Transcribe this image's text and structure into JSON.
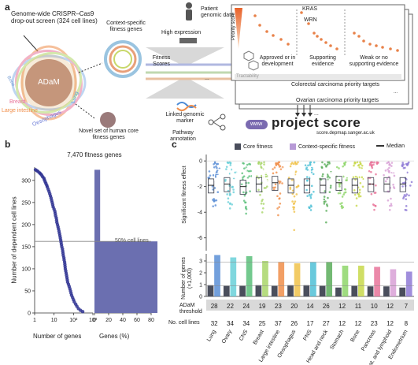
{
  "panel_a": {
    "letter": "a",
    "screen_label": "Genome-wide CRISPR–Cas9 drop-out screen (324 cell lines)",
    "center_label": "ADaM",
    "petal_labels": [
      "Bone",
      "Breast",
      "Large intestine",
      "Oesophagus",
      "Lung"
    ],
    "core_set_label": "Novel set of human core fitness genes",
    "context_label": "Context-specific fitness genes",
    "patient_label": "Patient genomic data",
    "expression_label": "High expression",
    "fitness_scores_label": "Fitness Scores",
    "marker_label": "Linked genomic marker",
    "pathway_label": "Pathway annotation",
    "priority_axis_label": "Priority score",
    "gene_labels": [
      "KRAS",
      "WRN"
    ],
    "evidence_groups": [
      "Approved or in development",
      "Supporting evidence",
      "Weak or no supporting evidence"
    ],
    "tractability_label": "Tractability",
    "target_labels": [
      "Colorectal carcinoma priority targets",
      "Ovarian carcinoma priority targets"
    ],
    "ellipsis": "...",
    "www_label": "www",
    "project_score_title": "project score",
    "project_score_url": "score.depmap.sanger.ac.uk"
  },
  "panel_b": {
    "letter": "b",
    "title": "7,470 fitness genes",
    "threshold_label": "50% cell lines"
  },
  "panel_c": {
    "letter": "c",
    "legend": [
      "Core fitness",
      "Context-specific fitness",
      "Median"
    ],
    "adam_threshold_label": "ADaM threshold",
    "cell_lines_label": "No. cell lines"
  },
  "colors": {
    "core": "#4a4e5c",
    "context": "#b79ad6",
    "orange": "#e8824a",
    "navy": "#2e3192",
    "bar_purple": "#6b6fb0"
  },
  "chart_data": [
    {
      "type": "scatter",
      "xlabel": "Number of genes",
      "ylabel": "Number of dependent cell lines",
      "x_scale": "log",
      "x_ticks": [
        "1",
        "10",
        "10²",
        "10³"
      ],
      "y_ticks": [
        0,
        50,
        100,
        150,
        200,
        250,
        300
      ],
      "ylim": [
        0,
        330
      ],
      "points": [
        [
          1.1,
          324
        ],
        [
          1.3,
          322
        ],
        [
          1.5,
          320
        ],
        [
          1.8,
          317
        ],
        [
          2,
          315
        ],
        [
          2.3,
          312
        ],
        [
          2.6,
          308
        ],
        [
          3,
          305
        ],
        [
          3.2,
          301
        ],
        [
          3.5,
          297
        ],
        [
          3.8,
          293
        ],
        [
          4.2,
          289
        ],
        [
          4.5,
          285
        ],
        [
          5,
          280
        ],
        [
          5.5,
          275
        ],
        [
          6,
          270
        ],
        [
          6.5,
          265
        ],
        [
          7,
          260
        ],
        [
          7.5,
          255
        ],
        [
          8,
          250
        ],
        [
          8.5,
          245
        ],
        [
          9,
          240
        ],
        [
          10,
          235
        ],
        [
          11,
          230
        ],
        [
          11.5,
          225
        ],
        [
          12,
          220
        ],
        [
          13,
          215
        ],
        [
          13.5,
          210
        ],
        [
          14,
          205
        ],
        [
          15,
          200
        ],
        [
          16,
          195
        ],
        [
          17,
          190
        ],
        [
          18,
          185
        ],
        [
          19,
          180
        ],
        [
          20,
          175
        ],
        [
          21,
          170
        ],
        [
          22,
          165
        ],
        [
          23,
          160
        ],
        [
          24,
          155
        ],
        [
          25,
          150
        ],
        [
          27,
          145
        ],
        [
          28,
          140
        ],
        [
          29,
          135
        ],
        [
          30,
          130
        ],
        [
          32,
          125
        ],
        [
          33,
          120
        ],
        [
          35,
          115
        ],
        [
          36,
          110
        ],
        [
          37,
          105
        ],
        [
          38,
          100
        ],
        [
          40,
          95
        ],
        [
          42,
          90
        ],
        [
          44,
          85
        ],
        [
          46,
          80
        ],
        [
          48,
          75
        ],
        [
          50,
          70
        ],
        [
          55,
          65
        ],
        [
          60,
          60
        ],
        [
          65,
          55
        ],
        [
          70,
          50
        ],
        [
          75,
          45
        ],
        [
          80,
          40
        ],
        [
          90,
          35
        ],
        [
          100,
          30
        ],
        [
          110,
          25
        ],
        [
          130,
          20
        ],
        [
          150,
          15
        ],
        [
          180,
          10
        ],
        [
          230,
          6
        ],
        [
          300,
          3
        ]
      ]
    },
    {
      "type": "bar",
      "xlabel": "Genes (%)",
      "x_ticks": [
        0,
        20,
        40,
        60,
        80
      ],
      "ylim": [
        0,
        330
      ],
      "bars": [
        {
          "label": "above 50% cell lines",
          "percent": 8,
          "y_from": 162,
          "y_to": 324
        },
        {
          "label": "below 50% cell lines",
          "percent": 92,
          "y_from": 0,
          "y_to": 162
        }
      ]
    },
    {
      "type": "box",
      "ylabel": "Significant fitness effect",
      "y_ticks": [
        0,
        -2,
        -4,
        -6
      ],
      "ylim": [
        -7,
        0.5
      ],
      "categories": [
        "Lung",
        "Ovary",
        "CNS",
        "Breast",
        "Large intestine",
        "Oesophagus",
        "PNS",
        "Head and neck",
        "Stomach",
        "Bone",
        "Pancreas",
        "Haemat. and lymphoid",
        "Endometrium"
      ],
      "colors": [
        "#5b8fd6",
        "#6ad0d8",
        "#5bbf7a",
        "#a9d66a",
        "#f08e4a",
        "#f0c24a",
        "#4fc0d6",
        "#5aad5a",
        "#8ed66a",
        "#c8d84a",
        "#e8749a",
        "#d8a0d6",
        "#8f7ad6"
      ],
      "medians_core": [
        -1.9,
        -1.8,
        -2.0,
        -1.8,
        -1.7,
        -1.9,
        -1.9,
        -1.9,
        -1.7,
        -1.9,
        -1.8,
        -1.8,
        -1.8
      ],
      "medians_context": [
        -1.0,
        -0.8,
        -0.9,
        -1.0,
        -0.9,
        -1.0,
        -0.8,
        -0.9,
        -0.9,
        -1.0,
        -0.9,
        -1.0,
        -0.8
      ]
    },
    {
      "type": "bar",
      "ylabel": "Number of genes (×1,000)",
      "y_ticks": [
        0,
        1,
        2,
        3
      ],
      "ylim": [
        0,
        3.6
      ],
      "categories": [
        "Lung",
        "Ovary",
        "CNS",
        "Breast",
        "Large intestine",
        "Oesophagus",
        "PNS",
        "Head and neck",
        "Stomach",
        "Bone",
        "Pancreas",
        "Haemat. and lymphoid",
        "Endometrium"
      ],
      "series": [
        {
          "name": "Core fitness",
          "values": [
            0.95,
            0.9,
            0.9,
            0.95,
            0.9,
            0.95,
            0.95,
            0.9,
            0.75,
            0.9,
            0.85,
            0.85,
            0.75
          ]
        },
        {
          "name": "Context-specific fitness",
          "values": [
            3.5,
            3.3,
            3.4,
            3.0,
            2.9,
            2.8,
            2.9,
            2.9,
            2.6,
            2.6,
            2.5,
            2.3,
            2.1
          ]
        }
      ],
      "adam_threshold": [
        28,
        22,
        24,
        19,
        23,
        20,
        14,
        26,
        12,
        11,
        10,
        12,
        7
      ],
      "cell_lines": [
        32,
        34,
        34,
        25,
        37,
        26,
        17,
        27,
        12,
        12,
        23,
        12,
        8
      ]
    }
  ]
}
